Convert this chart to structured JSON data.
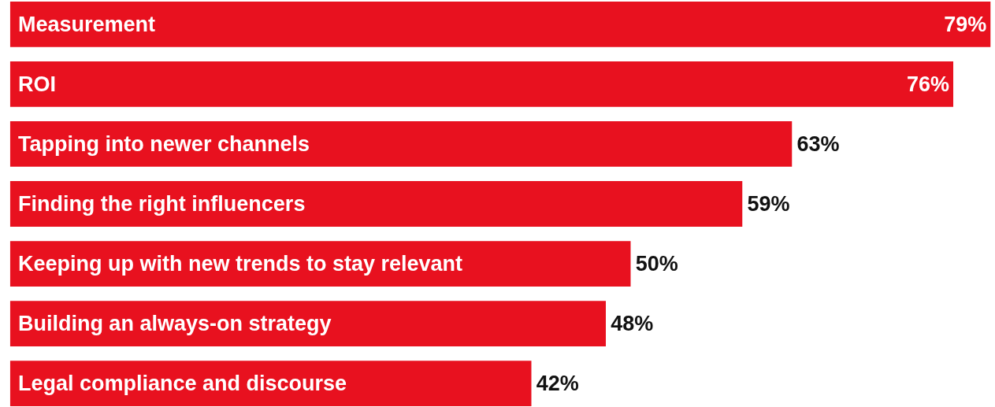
{
  "chart_data": {
    "type": "bar",
    "orientation": "horizontal",
    "categories": [
      "Measurement",
      "ROI",
      "Tapping into newer channels",
      "Finding the right influencers",
      "Keeping up with new trends to stay relevant",
      "Building an always-on strategy",
      "Legal compliance and discourse"
    ],
    "values": [
      79,
      76,
      63,
      59,
      50,
      48,
      42
    ],
    "value_labels": [
      "79%",
      "76%",
      "63%",
      "59%",
      "50%",
      "48%",
      "42%"
    ],
    "color": "#e8111f"
  }
}
